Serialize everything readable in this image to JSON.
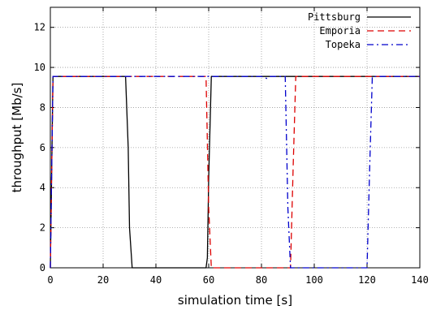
{
  "chart_data": {
    "type": "line",
    "xlabel": "simulation time [s]",
    "ylabel": "throughput [Mb/s]",
    "xlim": [
      0,
      140
    ],
    "ylim": [
      0,
      13
    ],
    "xticks": [
      0,
      20,
      40,
      60,
      80,
      100,
      120,
      140
    ],
    "yticks": [
      0,
      2,
      4,
      6,
      8,
      10,
      12
    ],
    "grid": true,
    "legend_position": "top-right",
    "series": [
      {
        "name": "Pittsburg",
        "color": "#000000",
        "dash": "solid",
        "x": [
          0,
          1,
          5,
          10,
          20,
          28.5,
          29.5,
          30,
          31,
          35,
          50,
          59,
          59.5,
          60,
          61,
          70,
          80,
          90,
          100,
          110,
          120,
          130,
          140
        ],
        "y": [
          0,
          9.55,
          9.55,
          9.55,
          9.55,
          9.55,
          6,
          2,
          0,
          0,
          0,
          0,
          0.5,
          4.5,
          9.55,
          9.55,
          9.55,
          9.55,
          9.55,
          9.55,
          9.55,
          9.55,
          9.55
        ]
      },
      {
        "name": "Emporia",
        "color": "#dd0000",
        "dash": "dash",
        "x": [
          0,
          1,
          10,
          20,
          30,
          40,
          58,
          59,
          60,
          61,
          80,
          90,
          91,
          92,
          93,
          110,
          120,
          130,
          140
        ],
        "y": [
          0,
          9.55,
          9.55,
          9.55,
          9.55,
          9.55,
          9.55,
          9.55,
          3,
          0,
          0,
          0,
          0,
          5,
          9.55,
          9.55,
          9.55,
          9.55,
          9.55
        ]
      },
      {
        "name": "Topeka",
        "color": "#0000cc",
        "dash": "dashdot",
        "x": [
          0,
          1,
          10,
          20,
          30,
          40,
          60,
          80,
          82,
          83,
          88,
          89,
          90,
          91,
          110,
          119,
          120,
          121,
          122,
          130,
          140
        ],
        "y": [
          0,
          9.55,
          9.55,
          9.55,
          9.55,
          9.55,
          9.55,
          9.55,
          9.45,
          9.55,
          9.55,
          9.55,
          3,
          0,
          0,
          0,
          0,
          5,
          9.55,
          9.55,
          9.55
        ]
      }
    ]
  }
}
